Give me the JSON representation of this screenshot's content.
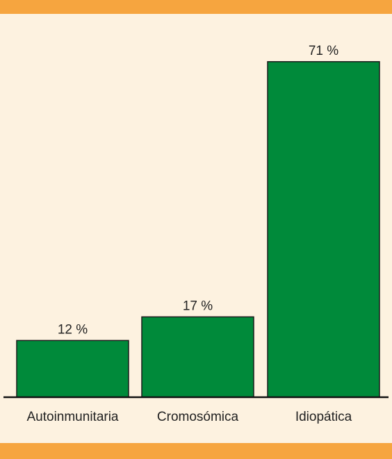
{
  "colors": {
    "background": "#fdf2e0",
    "band": "#f6a53f",
    "bar": "#008a3a"
  },
  "chart_data": {
    "type": "bar",
    "categories": [
      "Autoinmunitaria",
      "Cromosómica",
      "Idiopática"
    ],
    "values": [
      12,
      17,
      71
    ],
    "value_labels": [
      "12 %",
      "17 %",
      "71 %"
    ],
    "unit": "%",
    "ylim": [
      0,
      72
    ],
    "grid": false,
    "legend": "none"
  }
}
